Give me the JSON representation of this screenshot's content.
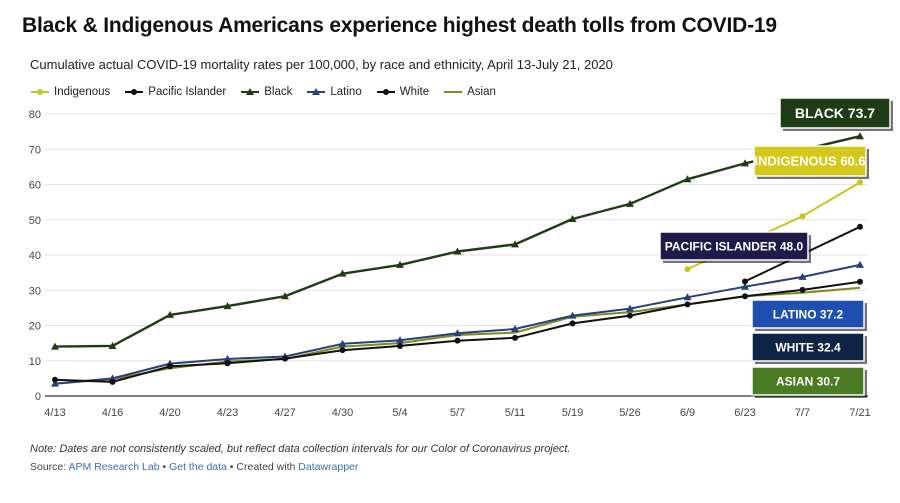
{
  "title": "Black & Indigenous Americans experience highest death tolls from COVID-19",
  "subtitle": "Cumulative actual COVID-19 mortality rates per 100,000, by race and ethnicity, April 13-July 21, 2020",
  "note": "Note: Dates are not consistently scaled, but reflect data collection intervals for our Color of Coronavirus project.",
  "source": {
    "prefix": "Source: ",
    "lab": "APM Research Lab",
    "sep1": " • ",
    "data_link": "Get the data",
    "sep2": " • Created with ",
    "tool": "Datawrapper"
  },
  "chart_data": {
    "type": "line",
    "categories": [
      "4/13",
      "4/16",
      "4/20",
      "4/23",
      "4/27",
      "4/30",
      "5/4",
      "5/7",
      "5/11",
      "5/19",
      "5/26",
      "6/9",
      "6/23",
      "7/7",
      "7/21"
    ],
    "ylim": [
      0,
      80
    ],
    "yticks": [
      0,
      10,
      20,
      30,
      40,
      50,
      60,
      70,
      80
    ],
    "grid": true,
    "legend_position": "top-left",
    "series": [
      {
        "name": "Indigenous",
        "color": "#c8c41f",
        "marker": "circle",
        "values": [
          null,
          null,
          null,
          null,
          null,
          null,
          null,
          null,
          null,
          null,
          null,
          36,
          null,
          51,
          60.6
        ]
      },
      {
        "name": "Pacific Islander",
        "color": "#111111",
        "marker": "circle",
        "values": [
          null,
          null,
          null,
          null,
          null,
          null,
          null,
          null,
          null,
          null,
          null,
          null,
          32.5,
          null,
          48.0
        ]
      },
      {
        "name": "Black",
        "color": "#1e3d14",
        "marker": "triangle",
        "values": [
          14,
          14.2,
          23,
          25.5,
          28.3,
          34.7,
          37.2,
          41,
          43,
          50.2,
          54.5,
          61.5,
          66,
          null,
          73.7
        ]
      },
      {
        "name": "Latino",
        "color": "#26407a",
        "marker": "triangle",
        "values": [
          3.5,
          5,
          9.2,
          10.5,
          11.2,
          14.8,
          15.8,
          17.8,
          19,
          22.8,
          24.8,
          28,
          31,
          33.8,
          37.2
        ]
      },
      {
        "name": "White",
        "color": "#111111",
        "marker": "circle",
        "values": [
          4.6,
          4,
          8.4,
          9.3,
          10.6,
          13,
          14.2,
          15.7,
          16.5,
          20.6,
          22.8,
          26,
          28.3,
          30.1,
          32.4
        ]
      },
      {
        "name": "Asian",
        "color": "#7a8c1e",
        "marker": "none",
        "values": [
          3.5,
          4.8,
          7.9,
          9.8,
          10.5,
          14,
          15,
          17.3,
          18,
          22.5,
          23.8,
          26,
          28.3,
          29.3,
          30.7
        ]
      }
    ],
    "labels": [
      {
        "text": "BLACK  73.7",
        "bg": "#1e3d14",
        "fg": "#ffffff"
      },
      {
        "text": "INDIGENOUS 60.6",
        "bg": "#d4c81a",
        "fg": "#ffffff"
      },
      {
        "text": "PACIFIC ISLANDER  48.0",
        "bg": "#1e1a4a",
        "fg": "#ffffff"
      },
      {
        "text": "LATINO  37.2",
        "bg": "#1f4fb0",
        "fg": "#ffffff"
      },
      {
        "text": "WHITE  32.4",
        "bg": "#0f2444",
        "fg": "#ffffff"
      },
      {
        "text": "ASIAN  30.7",
        "bg": "#4a7a22",
        "fg": "#ffffff"
      }
    ]
  }
}
